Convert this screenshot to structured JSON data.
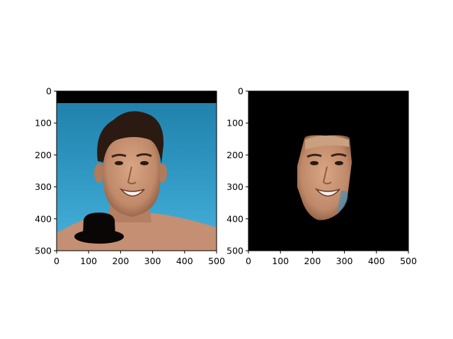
{
  "chart_data": [
    {
      "type": "image",
      "xlim": [
        0,
        500
      ],
      "ylim": [
        500,
        0
      ],
      "xticks": [
        0,
        100,
        200,
        300,
        400,
        500
      ],
      "yticks": [
        0,
        100,
        200,
        300,
        400,
        500
      ],
      "xtick_labels": [
        "0",
        "100",
        "200",
        "300",
        "400",
        "500"
      ],
      "ytick_labels": [
        "0",
        "100",
        "200",
        "300",
        "400",
        "500"
      ],
      "content": "photo-face-with-hat",
      "black_band_y": [
        0,
        38
      ]
    },
    {
      "type": "image",
      "xlim": [
        0,
        500
      ],
      "ylim": [
        500,
        0
      ],
      "xticks": [
        0,
        100,
        200,
        300,
        400,
        500
      ],
      "yticks": [
        0,
        100,
        200,
        300,
        400,
        500
      ],
      "xtick_labels": [
        "0",
        "100",
        "200",
        "300",
        "400",
        "500"
      ],
      "ytick_labels": [
        "0",
        "100",
        "200",
        "300",
        "400",
        "500"
      ],
      "content": "masked-face-on-black"
    }
  ],
  "colors": {
    "background": "#ffffff",
    "pool": "#2a8fb6",
    "pool_light": "#4ab0d8",
    "skin": "#c99476",
    "skin_shadow": "#8c5a40",
    "hair": "#2a1a12",
    "hat": "#0a0606",
    "black": "#000000"
  }
}
